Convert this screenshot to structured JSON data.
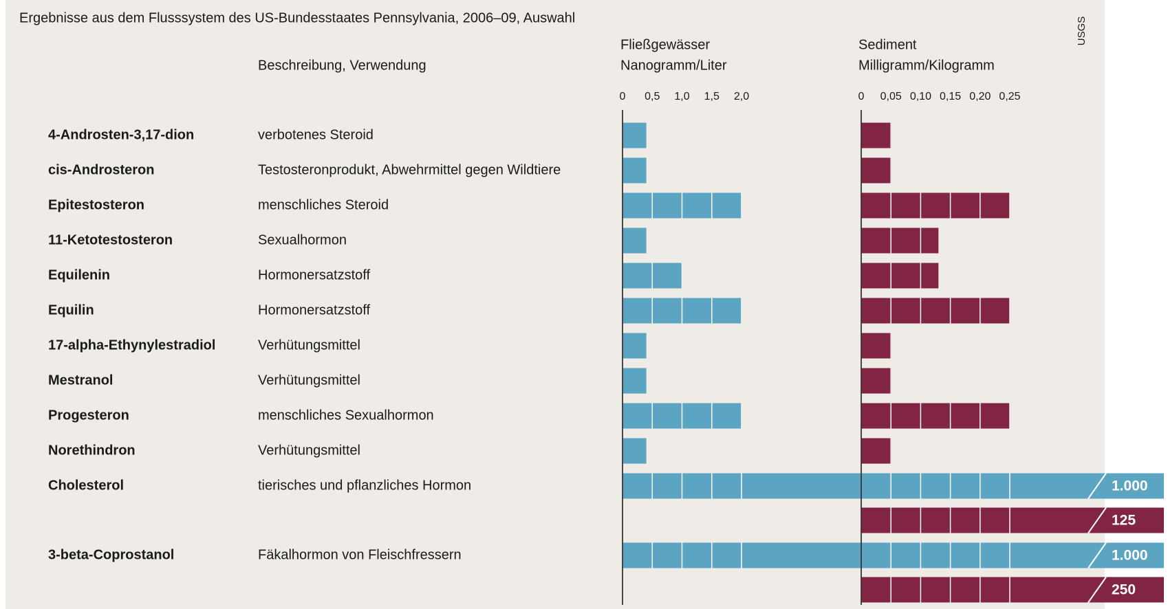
{
  "title": "Ergebnisse aus dem Flusssystem des US-Bundesstaates Pennsylvania, 2006–09,  Auswahl",
  "source": "USGS",
  "description_header": "Beschreibung, Verwendung",
  "substances": [
    {
      "name": "4-Androsten-3,17-dion",
      "description": "verbotenes Steroid"
    },
    {
      "name": "cis-Androsteron",
      "description": "Testosteronprodukt, Abwehrmittel gegen Wildtiere"
    },
    {
      "name": "Epitestosteron",
      "description": "menschliches  Steroid"
    },
    {
      "name": "11-Ketotestosteron",
      "description": "Sexualhormon"
    },
    {
      "name": "Equilenin",
      "description": "Hormonersatzstoff"
    },
    {
      "name": "Equilin",
      "description": "Hormonersatzstoff"
    },
    {
      "name": "17-alpha-Ethynylestradiol",
      "description": "Verhütungsmittel"
    },
    {
      "name": "Mestranol",
      "description": "Verhütungsmittel"
    },
    {
      "name": "Progesteron",
      "description": "menschliches Sexualhormon"
    },
    {
      "name": "Norethindron",
      "description": "Verhütungsmittel"
    },
    {
      "name": "Cholesterol",
      "description": "tierisches und pflanzliches Hormon"
    },
    {
      "name": "3-beta-Coprostanol",
      "description": "Fäkalhormon von Fleischfressern"
    }
  ],
  "chart_data": [
    {
      "type": "bar",
      "title": "Fließgewässer",
      "subtitle": "Nanogramm/Liter",
      "color": "#5ba5c3",
      "values": [
        0.4,
        0.4,
        2,
        0.4,
        1,
        2,
        0.4,
        0.4,
        2,
        0.4,
        1000,
        1000
      ],
      "value_labels": [
        null,
        null,
        null,
        null,
        null,
        null,
        null,
        null,
        null,
        null,
        "1.000",
        "1.000"
      ],
      "xlim": [
        0,
        2
      ],
      "xticks": [
        0,
        {
          "value": 0.5,
          "label": "0,5"
        },
        {
          "value": 1,
          "label": "1,0"
        },
        {
          "value": 1.5,
          "label": "1,5"
        },
        {
          "value": 2,
          "label": "2,0"
        }
      ]
    },
    {
      "type": "bar",
      "title": "Sediment",
      "subtitle": "Milligramm/Kilogramm",
      "color": "#822444",
      "values": [
        0.05,
        0.05,
        0.25,
        0.13,
        0.13,
        0.25,
        0.05,
        0.05,
        0.25,
        0.05,
        125,
        250
      ],
      "value_labels": [
        null,
        null,
        null,
        null,
        null,
        null,
        null,
        null,
        null,
        null,
        "125",
        "250"
      ],
      "xlim": [
        0,
        0.25
      ],
      "xticks": [
        0,
        {
          "value": 0.05,
          "label": "0,05"
        },
        {
          "value": 0.1,
          "label": "0,10"
        },
        {
          "value": 0.15,
          "label": "0,15"
        },
        {
          "value": 0.2,
          "label": "0,20"
        },
        {
          "value": 0.25,
          "label": "0,25"
        }
      ]
    }
  ]
}
